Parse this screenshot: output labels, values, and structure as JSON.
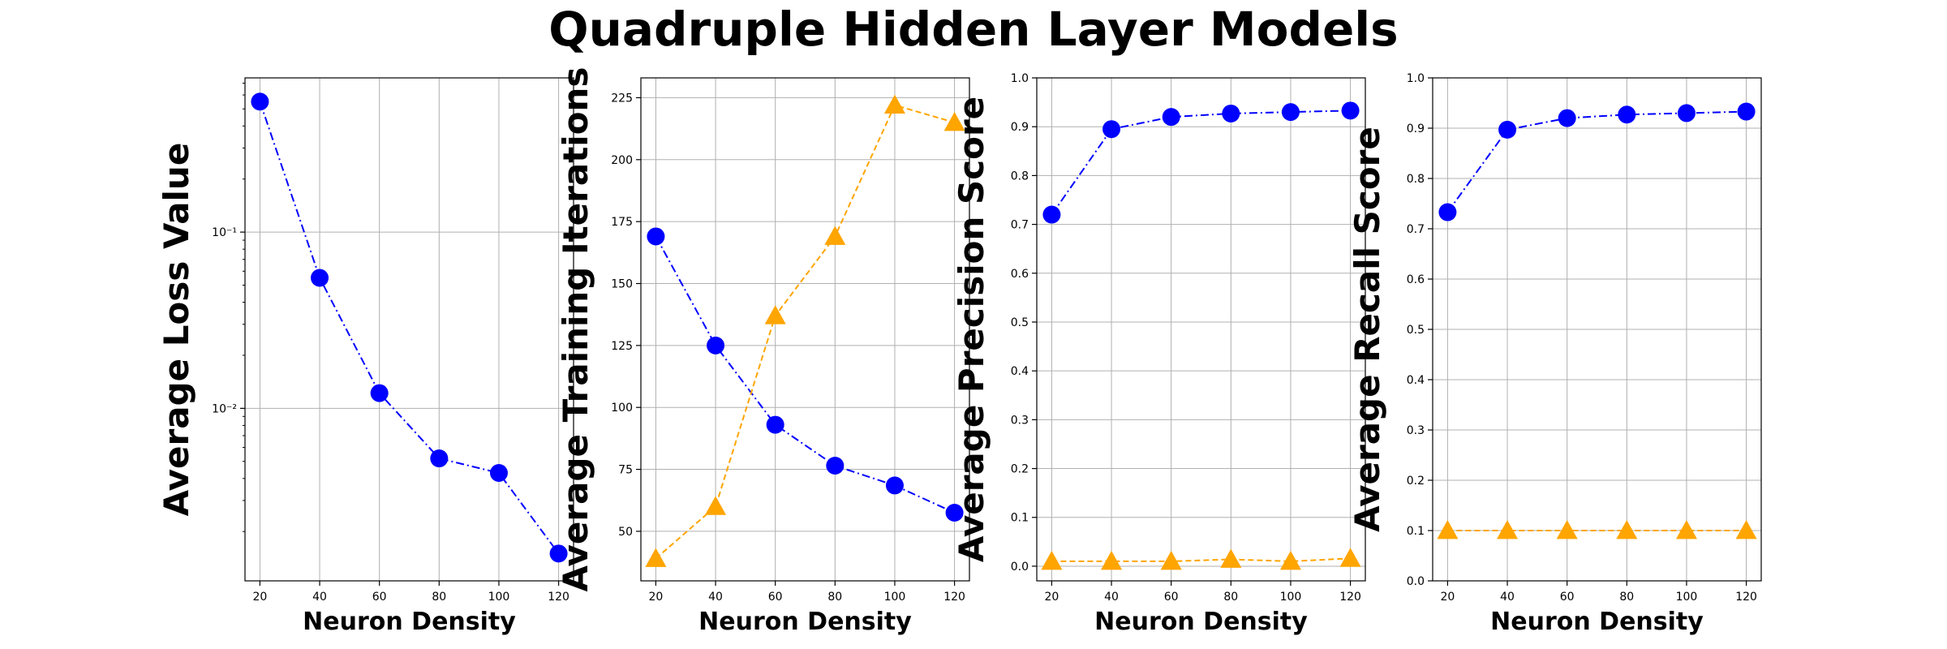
{
  "suptitle": "Quadruple Hidden Layer Models",
  "colors": {
    "series_a": "#0000ff",
    "series_b": "#ffa500",
    "grid": "#b0b0b0"
  },
  "chart_data": [
    {
      "type": "line",
      "x": [
        20,
        40,
        60,
        80,
        100,
        120
      ],
      "xlabel": "Neuron Density",
      "ylabel": "Average Loss Value",
      "xticks": [
        "20",
        "40",
        "60",
        "80",
        "100",
        "120"
      ],
      "yscale": "log",
      "ylim": [
        0.00105,
        0.75
      ],
      "ytick_values": [
        0.1,
        0.01
      ],
      "ytick_labels": [
        "10⁻¹",
        "10⁻²"
      ],
      "grid": true,
      "series": [
        {
          "marker": "circle",
          "linestyle": "dashdot",
          "color": "#0000ff",
          "values": [
            0.55,
            0.055,
            0.0122,
            0.0052,
            0.0043,
            0.0015
          ]
        }
      ]
    },
    {
      "type": "line",
      "x": [
        20,
        40,
        60,
        80,
        100,
        120
      ],
      "xlabel": "Neuron Density",
      "ylabel": "Average Training Iterations",
      "xticks": [
        "20",
        "40",
        "60",
        "80",
        "100",
        "120"
      ],
      "yscale": "linear",
      "ylim": [
        30,
        233
      ],
      "ytick_values": [
        50,
        75,
        100,
        125,
        150,
        175,
        200,
        225
      ],
      "ytick_labels": [
        "50",
        "75",
        "100",
        "125",
        "150",
        "175",
        "200",
        "225"
      ],
      "grid": true,
      "series": [
        {
          "marker": "circle",
          "linestyle": "dashdot",
          "color": "#0000ff",
          "values": [
            169,
            125,
            93,
            76.5,
            68.5,
            57.5
          ]
        },
        {
          "marker": "triangle",
          "linestyle": "dashed",
          "color": "#ffa500",
          "values": [
            39,
            60,
            137,
            169,
            222,
            215
          ]
        }
      ]
    },
    {
      "type": "line",
      "x": [
        20,
        40,
        60,
        80,
        100,
        120
      ],
      "xlabel": "Neuron Density",
      "ylabel": "Average Precision Score",
      "xticks": [
        "20",
        "40",
        "60",
        "80",
        "100",
        "120"
      ],
      "yscale": "linear",
      "ylim": [
        -0.03,
        1.0
      ],
      "ytick_values": [
        0.0,
        0.1,
        0.2,
        0.3,
        0.4,
        0.5,
        0.6,
        0.7,
        0.8,
        0.9,
        1.0
      ],
      "ytick_labels": [
        "0.0",
        "0.1",
        "0.2",
        "0.3",
        "0.4",
        "0.5",
        "0.6",
        "0.7",
        "0.8",
        "0.9",
        "1.0"
      ],
      "grid": true,
      "series": [
        {
          "marker": "circle",
          "linestyle": "dashdot",
          "color": "#0000ff",
          "values": [
            0.72,
            0.895,
            0.92,
            0.927,
            0.93,
            0.933
          ]
        },
        {
          "marker": "triangle",
          "linestyle": "dashed",
          "color": "#ffa500",
          "values": [
            0.01,
            0.01,
            0.01,
            0.014,
            0.01,
            0.016
          ]
        }
      ]
    },
    {
      "type": "line",
      "x": [
        20,
        40,
        60,
        80,
        100,
        120
      ],
      "xlabel": "Neuron Density",
      "ylabel": "Average Recall Score",
      "xticks": [
        "20",
        "40",
        "60",
        "80",
        "100",
        "120"
      ],
      "yscale": "linear",
      "ylim": [
        0.0,
        1.0
      ],
      "ytick_values": [
        0.0,
        0.1,
        0.2,
        0.3,
        0.4,
        0.5,
        0.6,
        0.7,
        0.8,
        0.9,
        1.0
      ],
      "ytick_labels": [
        "0.0",
        "0.1",
        "0.2",
        "0.3",
        "0.4",
        "0.5",
        "0.6",
        "0.7",
        "0.8",
        "0.9",
        "1.0"
      ],
      "grid": true,
      "series": [
        {
          "marker": "circle",
          "linestyle": "dashdot",
          "color": "#0000ff",
          "values": [
            0.733,
            0.897,
            0.92,
            0.927,
            0.93,
            0.933
          ]
        },
        {
          "marker": "triangle",
          "linestyle": "dashed",
          "color": "#ffa500",
          "values": [
            0.1,
            0.1,
            0.1,
            0.1,
            0.1,
            0.1
          ]
        }
      ]
    }
  ]
}
